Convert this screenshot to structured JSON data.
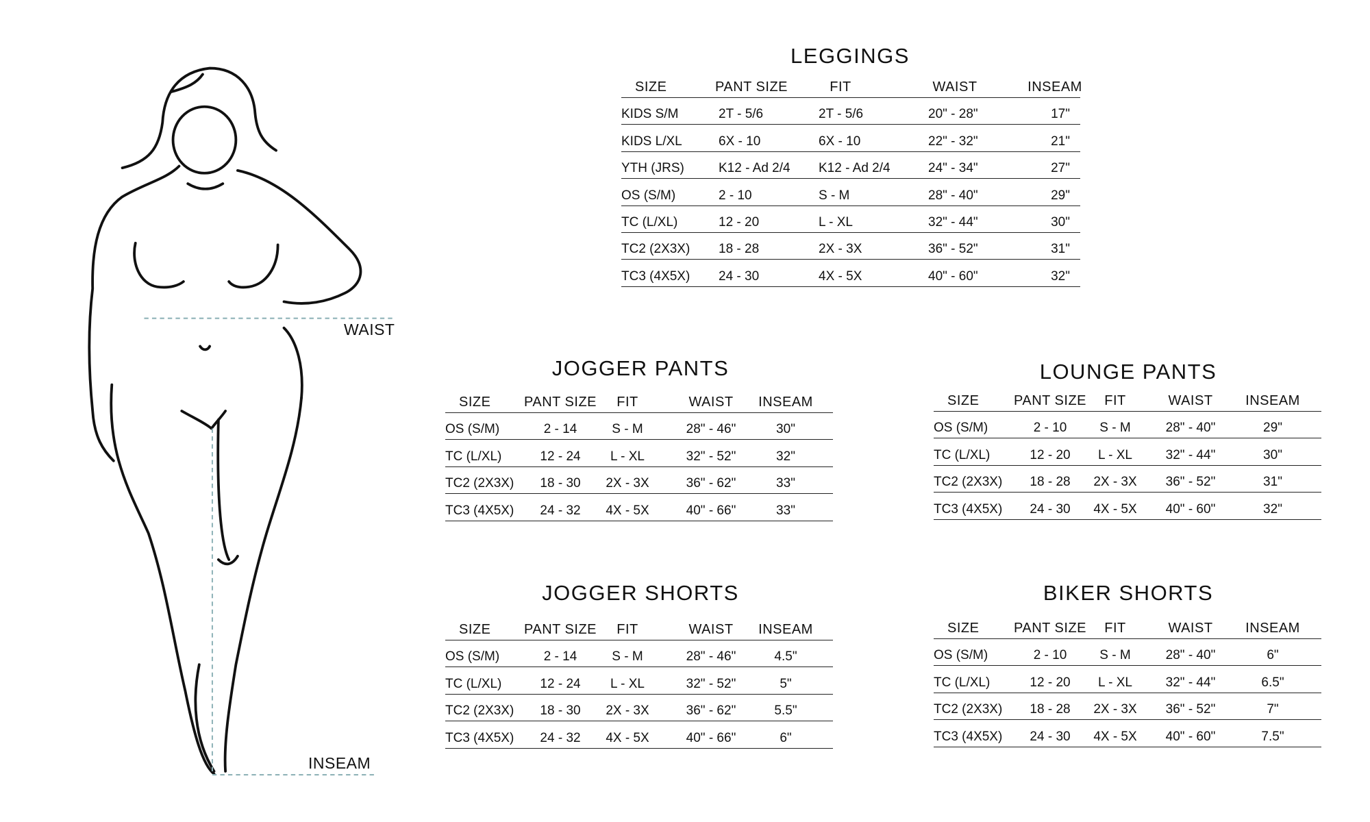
{
  "figure": {
    "waist_label": "WAIST",
    "inseam_label": "INSEAM",
    "measure_line_color": "#8fb3b8"
  },
  "tables": [
    {
      "id": "leggings",
      "title": "LEGGINGS",
      "headers": [
        "SIZE",
        "PANT SIZE",
        "FIT",
        "WAIST",
        "INSEAM"
      ],
      "rows": [
        [
          "KIDS S/M",
          "2T - 5/6",
          "2T - 5/6",
          "20\" - 28\"",
          "17\""
        ],
        [
          "KIDS L/XL",
          "6X - 10",
          "6X - 10",
          "22\" - 32\"",
          "21\""
        ],
        [
          "YTH (JRS)",
          "K12 - Ad 2/4",
          "K12 - Ad 2/4",
          "24\" - 34\"",
          "27\""
        ],
        [
          "OS (S/M)",
          "2 - 10",
          "S - M",
          "28\" - 40\"",
          "29\""
        ],
        [
          "TC (L/XL)",
          "12 - 20",
          "L - XL",
          "32\" - 44\"",
          "30\""
        ],
        [
          "TC2 (2X3X)",
          "18 - 28",
          "2X - 3X",
          "36\" - 52\"",
          "31\""
        ],
        [
          "TC3 (4X5X)",
          "24 - 30",
          "4X - 5X",
          "40\" - 60\"",
          "32\""
        ]
      ]
    },
    {
      "id": "jogger-pants",
      "title": "JOGGER PANTS",
      "headers": [
        "SIZE",
        "PANT SIZE",
        "FIT",
        "WAIST",
        "INSEAM"
      ],
      "rows": [
        [
          "OS (S/M)",
          "2 - 14",
          "S - M",
          "28\" - 46\"",
          "30\""
        ],
        [
          "TC (L/XL)",
          "12 - 24",
          "L - XL",
          "32\" - 52\"",
          "32\""
        ],
        [
          "TC2 (2X3X)",
          "18 - 30",
          "2X - 3X",
          "36\" - 62\"",
          "33\""
        ],
        [
          "TC3 (4X5X)",
          "24 - 32",
          "4X - 5X",
          "40\" - 66\"",
          "33\""
        ]
      ]
    },
    {
      "id": "lounge-pants",
      "title": "LOUNGE PANTS",
      "headers": [
        "SIZE",
        "PANT SIZE",
        "FIT",
        "WAIST",
        "INSEAM"
      ],
      "rows": [
        [
          "OS (S/M)",
          "2 - 10",
          "S - M",
          "28\" - 40\"",
          "29\""
        ],
        [
          "TC (L/XL)",
          "12 - 20",
          "L - XL",
          "32\" - 44\"",
          "30\""
        ],
        [
          "TC2 (2X3X)",
          "18 - 28",
          "2X - 3X",
          "36\" - 52\"",
          "31\""
        ],
        [
          "TC3 (4X5X)",
          "24 - 30",
          "4X - 5X",
          "40\" - 60\"",
          "32\""
        ]
      ]
    },
    {
      "id": "jogger-shorts",
      "title": "JOGGER SHORTS",
      "headers": [
        "SIZE",
        "PANT SIZE",
        "FIT",
        "WAIST",
        "INSEAM"
      ],
      "rows": [
        [
          "OS (S/M)",
          "2 - 14",
          "S - M",
          "28\" - 46\"",
          "4.5\""
        ],
        [
          "TC (L/XL)",
          "12 - 24",
          "L - XL",
          "32\" - 52\"",
          "5\""
        ],
        [
          "TC2 (2X3X)",
          "18 - 30",
          "2X - 3X",
          "36\" - 62\"",
          "5.5\""
        ],
        [
          "TC3 (4X5X)",
          "24 - 32",
          "4X - 5X",
          "40\" - 66\"",
          "6\""
        ]
      ]
    },
    {
      "id": "biker-shorts",
      "title": "BIKER SHORTS",
      "headers": [
        "SIZE",
        "PANT SIZE",
        "FIT",
        "WAIST",
        "INSEAM"
      ],
      "rows": [
        [
          "OS (S/M)",
          "2 - 10",
          "S - M",
          "28\" - 40\"",
          "6\""
        ],
        [
          "TC (L/XL)",
          "12 - 20",
          "L - XL",
          "32\" - 44\"",
          "6.5\""
        ],
        [
          "TC2 (2X3X)",
          "18 - 28",
          "2X - 3X",
          "36\" - 52\"",
          "7\""
        ],
        [
          "TC3 (4X5X)",
          "24 - 30",
          "4X - 5X",
          "40\" - 60\"",
          "7.5\""
        ]
      ]
    }
  ]
}
